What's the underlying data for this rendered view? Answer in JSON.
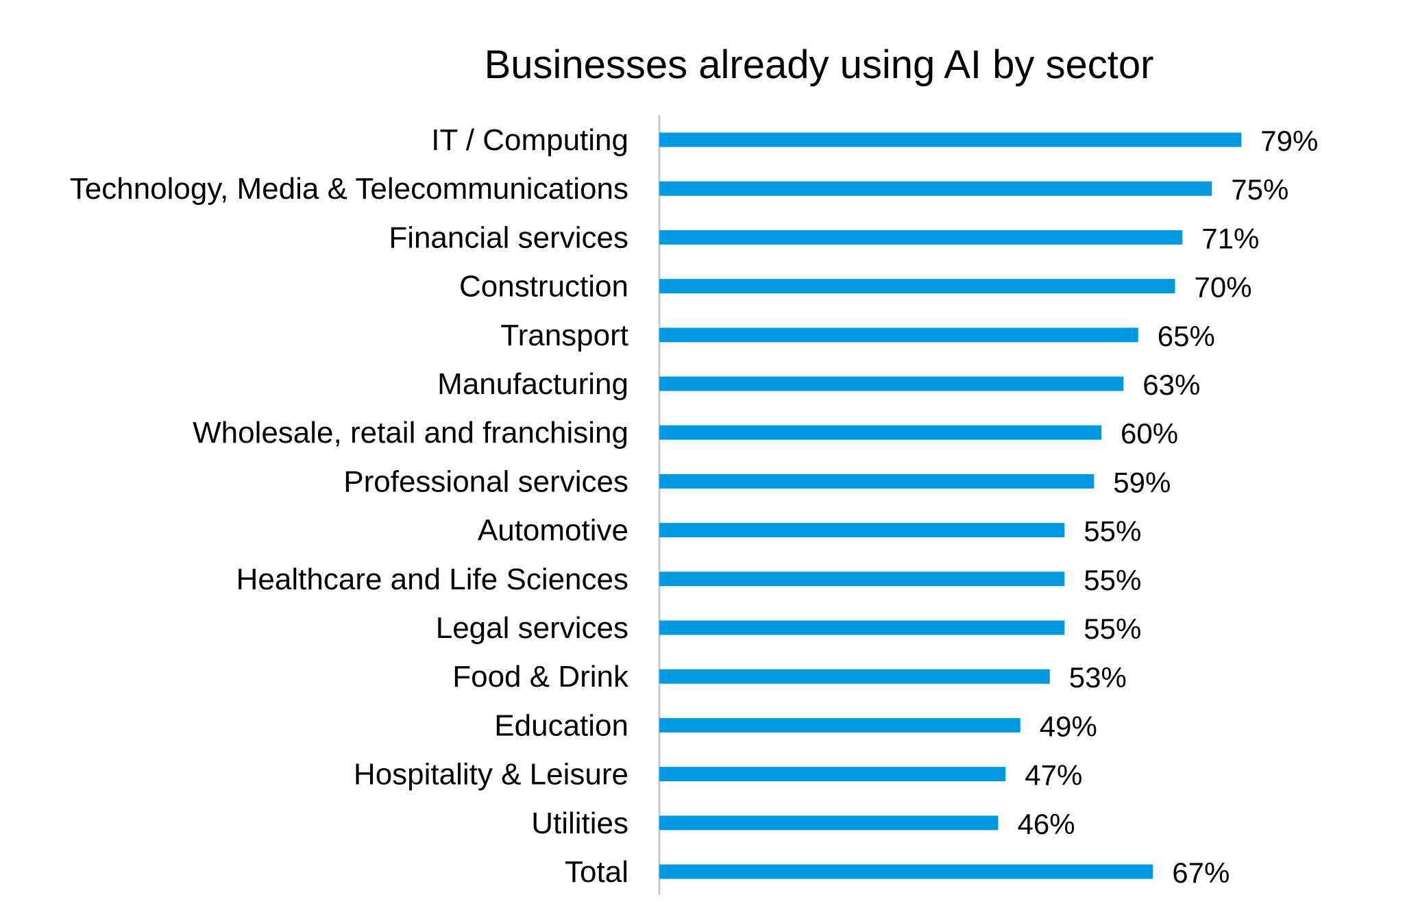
{
  "chart_data": {
    "type": "bar",
    "orientation": "horizontal",
    "title": "Businesses already using AI by sector",
    "xlabel": "",
    "ylabel": "",
    "xlim": [
      0,
      100
    ],
    "grid": false,
    "legend": "none",
    "bar_color": "#0099E0",
    "axis_color": "#C8C8C8",
    "value_suffix": "%",
    "categories": [
      "IT / Computing",
      "Technology, Media & Telecommunications",
      "Financial services",
      "Construction",
      "Transport",
      "Manufacturing",
      "Wholesale, retail and franchising",
      "Professional services",
      "Automotive",
      "Healthcare and Life Sciences",
      "Legal services",
      "Food & Drink",
      "Education",
      "Hospitality & Leisure",
      "Utilities",
      "Total"
    ],
    "values": [
      79,
      75,
      71,
      70,
      65,
      63,
      60,
      59,
      55,
      55,
      55,
      53,
      49,
      47,
      46,
      67
    ],
    "data_labels": [
      "79%",
      "75%",
      "71%",
      "70%",
      "65%",
      "63%",
      "60%",
      "59%",
      "55%",
      "55%",
      "55%",
      "53%",
      "49%",
      "47%",
      "46%",
      "67%"
    ]
  }
}
